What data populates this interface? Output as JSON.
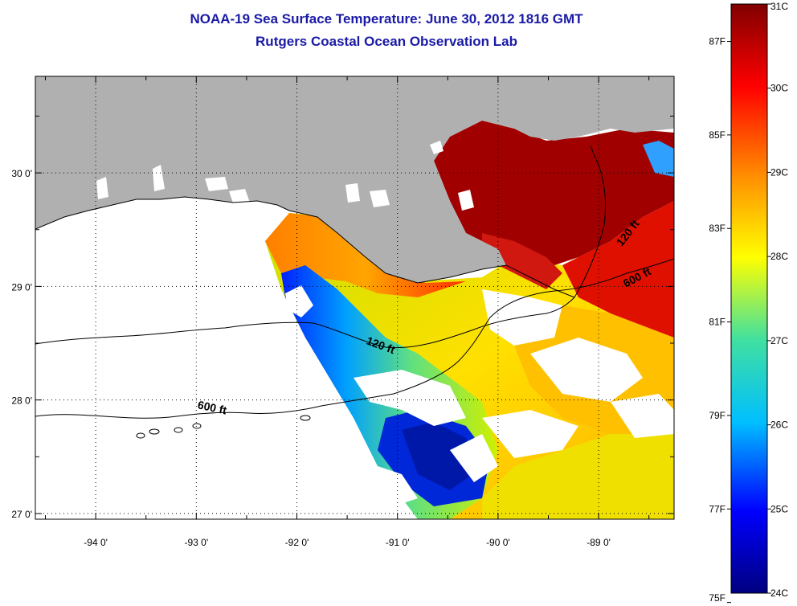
{
  "title": "NOAA-19 Sea Surface Temperature:  June 30, 2012 1816 GMT",
  "subtitle": "Rutgers Coastal Ocean Observation Lab",
  "map": {
    "lon_range": [
      -94.6,
      -88.25
    ],
    "lat_range": [
      26.95,
      30.85
    ],
    "lon_ticks": [
      {
        "value": -94,
        "label": "-94 0'"
      },
      {
        "value": -93,
        "label": "-93 0'"
      },
      {
        "value": -92,
        "label": "-92 0'"
      },
      {
        "value": -91,
        "label": "-91 0'"
      },
      {
        "value": -90,
        "label": "-90 0'"
      },
      {
        "value": -89,
        "label": "-89 0'"
      }
    ],
    "lat_ticks": [
      {
        "value": 30,
        "label": "30 0'"
      },
      {
        "value": 29,
        "label": "29 0'"
      },
      {
        "value": 28,
        "label": "28 0'"
      },
      {
        "value": 27,
        "label": "27 0'"
      }
    ],
    "grid": true,
    "land_color": "#b0b0b0",
    "contour_labels": [
      {
        "text": "120 ft",
        "lon": -91.18,
        "lat": 28.45,
        "angle": 20
      },
      {
        "text": "600 ft",
        "lon": -92.85,
        "lat": 27.9,
        "angle": 12
      },
      {
        "text": "120 ft",
        "lon": -88.68,
        "lat": 29.45,
        "angle": -52
      },
      {
        "text": "600 ft",
        "lon": -88.6,
        "lat": 29.05,
        "angle": -28
      }
    ]
  },
  "colorbar": {
    "min": 24,
    "max": 31,
    "stops": [
      "#000080",
      "#0000ff",
      "#00bfff",
      "#40e0a0",
      "#ffff00",
      "#ff8c00",
      "#ff0000",
      "#800000"
    ],
    "celsius_labels": [
      "31C",
      "30C",
      "29C",
      "28C",
      "27C",
      "26C",
      "25C",
      "24C"
    ],
    "fahrenheit_labels": [
      "87F",
      "85F",
      "83F",
      "81F",
      "79F",
      "77F",
      "75F"
    ]
  }
}
